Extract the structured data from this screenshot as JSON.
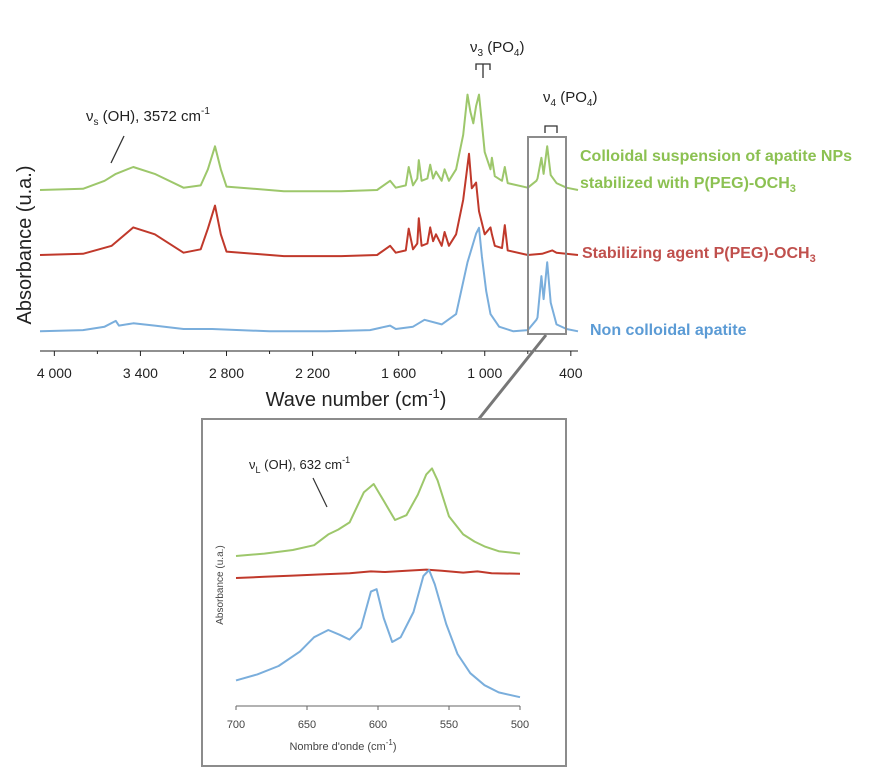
{
  "colors": {
    "green": "#9dc76b",
    "red": "#c0392b",
    "blue": "#7aaedc",
    "legend_green": "#8cc152",
    "legend_red": "#c0504d",
    "legend_blue": "#5b9bd5",
    "axis": "#222222",
    "box": "#8c8c8c"
  },
  "chart_data": [
    {
      "type": "line",
      "xlabel": "Wave number (cm",
      "xlabel_sup": "-1",
      "xlabel_end": ")",
      "ylabel": "Absorbance (u.a.)",
      "xlim": [
        4100,
        350
      ],
      "x_reversed": true,
      "y_ticks_shown": false,
      "x_tick_labels": [
        "4 000",
        "3 400",
        "2 800",
        "2 200",
        "1 600",
        "1 000",
        "400"
      ],
      "x_ticks": [
        4000,
        3400,
        2800,
        2200,
        1600,
        1000,
        400
      ],
      "annotations": {
        "vs_oh": {
          "main": "ν",
          "sub": "s",
          "rest": " (OH), 3572 cm",
          "sup": "-1"
        },
        "v3_po4": {
          "main": "ν",
          "sub": "3",
          "rest": " (PO",
          "sub2": "4",
          "end": ")"
        },
        "v4_po4": {
          "main": "ν",
          "sub": "4",
          "rest": " (PO",
          "sub2": "4",
          "end": ")"
        }
      },
      "series": [
        {
          "name": "Colloidal suspension of apatite NPs",
          "name_line2": "stabilized with P(PEG)-OCH",
          "name_sub": "3",
          "color_key": "green",
          "points": [
            [
              4100,
              0.12
            ],
            [
              3800,
              0.13
            ],
            [
              3650,
              0.2
            ],
            [
              3572,
              0.26
            ],
            [
              3450,
              0.32
            ],
            [
              3300,
              0.26
            ],
            [
              3100,
              0.14
            ],
            [
              2980,
              0.16
            ],
            [
              2930,
              0.3
            ],
            [
              2880,
              0.5
            ],
            [
              2840,
              0.3
            ],
            [
              2800,
              0.15
            ],
            [
              2400,
              0.11
            ],
            [
              2000,
              0.11
            ],
            [
              1750,
              0.12
            ],
            [
              1660,
              0.2
            ],
            [
              1620,
              0.14
            ],
            [
              1550,
              0.16
            ],
            [
              1530,
              0.32
            ],
            [
              1500,
              0.16
            ],
            [
              1470,
              0.22
            ],
            [
              1460,
              0.38
            ],
            [
              1440,
              0.2
            ],
            [
              1400,
              0.22
            ],
            [
              1380,
              0.34
            ],
            [
              1360,
              0.22
            ],
            [
              1340,
              0.28
            ],
            [
              1300,
              0.2
            ],
            [
              1280,
              0.3
            ],
            [
              1250,
              0.2
            ],
            [
              1200,
              0.3
            ],
            [
              1150,
              0.6
            ],
            [
              1120,
              0.95
            ],
            [
              1100,
              0.8
            ],
            [
              1080,
              0.7
            ],
            [
              1060,
              0.85
            ],
            [
              1040,
              0.95
            ],
            [
              1020,
              0.7
            ],
            [
              1000,
              0.45
            ],
            [
              960,
              0.3
            ],
            [
              950,
              0.4
            ],
            [
              930,
              0.24
            ],
            [
              880,
              0.2
            ],
            [
              860,
              0.32
            ],
            [
              840,
              0.18
            ],
            [
              700,
              0.14
            ],
            [
              640,
              0.2
            ],
            [
              632,
              0.22
            ],
            [
              605,
              0.4
            ],
            [
              590,
              0.26
            ],
            [
              565,
              0.5
            ],
            [
              540,
              0.25
            ],
            [
              500,
              0.18
            ],
            [
              430,
              0.14
            ],
            [
              350,
              0.12
            ]
          ]
        },
        {
          "name": "Stabilizing agent P(PEG)-OCH",
          "name_sub": "3",
          "color_key": "red",
          "points": [
            [
              4100,
              0.12
            ],
            [
              3800,
              0.13
            ],
            [
              3600,
              0.2
            ],
            [
              3450,
              0.36
            ],
            [
              3300,
              0.3
            ],
            [
              3100,
              0.14
            ],
            [
              2980,
              0.17
            ],
            [
              2930,
              0.35
            ],
            [
              2880,
              0.55
            ],
            [
              2840,
              0.3
            ],
            [
              2800,
              0.15
            ],
            [
              2400,
              0.11
            ],
            [
              2000,
              0.11
            ],
            [
              1750,
              0.12
            ],
            [
              1660,
              0.2
            ],
            [
              1620,
              0.14
            ],
            [
              1550,
              0.16
            ],
            [
              1530,
              0.35
            ],
            [
              1500,
              0.17
            ],
            [
              1470,
              0.22
            ],
            [
              1460,
              0.44
            ],
            [
              1440,
              0.2
            ],
            [
              1400,
              0.22
            ],
            [
              1380,
              0.36
            ],
            [
              1360,
              0.24
            ],
            [
              1340,
              0.3
            ],
            [
              1300,
              0.2
            ],
            [
              1280,
              0.32
            ],
            [
              1250,
              0.2
            ],
            [
              1200,
              0.3
            ],
            [
              1150,
              0.6
            ],
            [
              1110,
              1.0
            ],
            [
              1090,
              0.7
            ],
            [
              1060,
              0.75
            ],
            [
              1040,
              0.5
            ],
            [
              1000,
              0.3
            ],
            [
              960,
              0.36
            ],
            [
              950,
              0.3
            ],
            [
              930,
              0.2
            ],
            [
              880,
              0.18
            ],
            [
              860,
              0.38
            ],
            [
              840,
              0.16
            ],
            [
              700,
              0.12
            ],
            [
              600,
              0.13
            ],
            [
              530,
              0.16
            ],
            [
              500,
              0.14
            ],
            [
              350,
              0.12
            ]
          ]
        },
        {
          "name": "Non colloidal apatite",
          "color_key": "blue",
          "points": [
            [
              4100,
              0.1
            ],
            [
              3800,
              0.11
            ],
            [
              3650,
              0.14
            ],
            [
              3572,
              0.19
            ],
            [
              3550,
              0.15
            ],
            [
              3450,
              0.17
            ],
            [
              3300,
              0.15
            ],
            [
              3100,
              0.12
            ],
            [
              2900,
              0.12
            ],
            [
              2500,
              0.1
            ],
            [
              2100,
              0.1
            ],
            [
              1800,
              0.11
            ],
            [
              1660,
              0.15
            ],
            [
              1620,
              0.12
            ],
            [
              1500,
              0.14
            ],
            [
              1420,
              0.2
            ],
            [
              1300,
              0.16
            ],
            [
              1200,
              0.25
            ],
            [
              1120,
              0.7
            ],
            [
              1060,
              0.95
            ],
            [
              1040,
              1.0
            ],
            [
              1020,
              0.75
            ],
            [
              990,
              0.45
            ],
            [
              960,
              0.25
            ],
            [
              900,
              0.14
            ],
            [
              800,
              0.1
            ],
            [
              700,
              0.11
            ],
            [
              640,
              0.2
            ],
            [
              632,
              0.22
            ],
            [
              605,
              0.58
            ],
            [
              590,
              0.38
            ],
            [
              565,
              0.7
            ],
            [
              540,
              0.35
            ],
            [
              500,
              0.16
            ],
            [
              430,
              0.12
            ],
            [
              350,
              0.1
            ]
          ]
        }
      ]
    },
    {
      "type": "line",
      "inset": true,
      "xlabel": "Nombre d'onde (cm",
      "xlabel_sup": "-1",
      "xlabel_end": ")",
      "ylabel": "Absorbance (u.a.)",
      "xlim": [
        700,
        500
      ],
      "x_reversed": true,
      "x_ticks": [
        700,
        650,
        600,
        550,
        500
      ],
      "x_tick_labels": [
        "700",
        "650",
        "600",
        "550",
        "500"
      ],
      "annotation": {
        "main": "ν",
        "sub": "L",
        "rest": " (OH), 632 cm",
        "sup": "-1"
      },
      "series": [
        {
          "color_key": "green",
          "points": [
            [
              700,
              0.12
            ],
            [
              680,
              0.14
            ],
            [
              660,
              0.17
            ],
            [
              645,
              0.21
            ],
            [
              635,
              0.3
            ],
            [
              628,
              0.34
            ],
            [
              620,
              0.4
            ],
            [
              610,
              0.65
            ],
            [
              603,
              0.72
            ],
            [
              596,
              0.58
            ],
            [
              588,
              0.42
            ],
            [
              580,
              0.46
            ],
            [
              572,
              0.63
            ],
            [
              566,
              0.8
            ],
            [
              562,
              0.85
            ],
            [
              558,
              0.75
            ],
            [
              550,
              0.45
            ],
            [
              540,
              0.3
            ],
            [
              532,
              0.24
            ],
            [
              525,
              0.2
            ],
            [
              515,
              0.16
            ],
            [
              500,
              0.14
            ]
          ]
        },
        {
          "color_key": "red",
          "points": [
            [
              700,
              0.0
            ],
            [
              680,
              0.01
            ],
            [
              660,
              0.02
            ],
            [
              640,
              0.03
            ],
            [
              620,
              0.04
            ],
            [
              605,
              0.055
            ],
            [
              595,
              0.05
            ],
            [
              580,
              0.06
            ],
            [
              566,
              0.07
            ],
            [
              555,
              0.06
            ],
            [
              540,
              0.045
            ],
            [
              530,
              0.055
            ],
            [
              520,
              0.04
            ],
            [
              500,
              0.035
            ]
          ]
        },
        {
          "color_key": "blue",
          "points": [
            [
              700,
              -0.42
            ],
            [
              685,
              -0.37
            ],
            [
              670,
              -0.3
            ],
            [
              655,
              -0.18
            ],
            [
              645,
              -0.06
            ],
            [
              635,
              0.0
            ],
            [
              627,
              -0.04
            ],
            [
              620,
              -0.08
            ],
            [
              612,
              0.02
            ],
            [
              605,
              0.32
            ],
            [
              601,
              0.34
            ],
            [
              596,
              0.1
            ],
            [
              590,
              -0.1
            ],
            [
              584,
              -0.06
            ],
            [
              575,
              0.15
            ],
            [
              568,
              0.45
            ],
            [
              564,
              0.5
            ],
            [
              560,
              0.38
            ],
            [
              552,
              0.05
            ],
            [
              544,
              -0.2
            ],
            [
              535,
              -0.36
            ],
            [
              525,
              -0.46
            ],
            [
              515,
              -0.52
            ],
            [
              500,
              -0.56
            ]
          ]
        }
      ]
    }
  ]
}
